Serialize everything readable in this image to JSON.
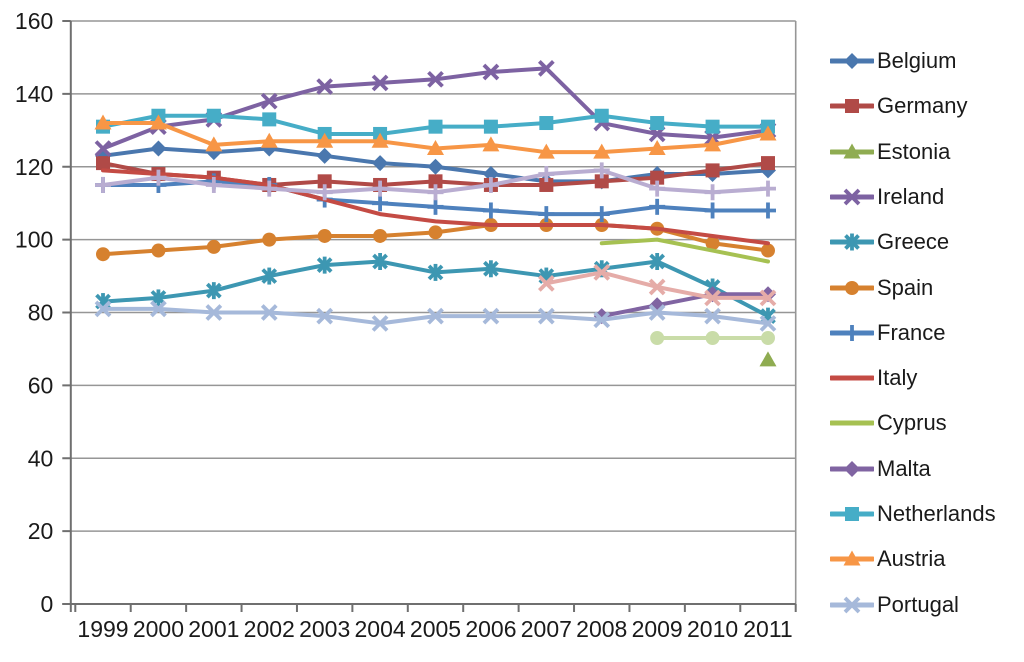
{
  "chart_data": {
    "type": "line",
    "title": "",
    "xlabel": "",
    "ylabel": "",
    "x_categories": [
      "1999",
      "2000",
      "2001",
      "2002",
      "2003",
      "2004",
      "2005",
      "2006",
      "2007",
      "2008",
      "2009",
      "2010",
      "2011"
    ],
    "y_axis": {
      "min": 0,
      "max": 160,
      "tick_step": 20,
      "tick_labels": [
        "0",
        "20",
        "40",
        "60",
        "80",
        "100",
        "120",
        "140",
        "160"
      ]
    },
    "grid": true,
    "legend_position": "right",
    "series": [
      {
        "id": "belgium",
        "name": "Belgium",
        "color": "#4A77AE",
        "marker": "diamond",
        "in_legend": true,
        "values": [
          123,
          125,
          124,
          125,
          123,
          121,
          120,
          118,
          116,
          116,
          118,
          118,
          119
        ]
      },
      {
        "id": "germany",
        "name": "Germany",
        "color": "#B04A47",
        "marker": "square",
        "in_legend": true,
        "values": [
          121,
          118,
          117,
          115,
          116,
          115,
          116,
          115,
          115,
          116,
          117,
          119,
          121
        ]
      },
      {
        "id": "estonia",
        "name": "Estonia",
        "color": "#8FAC51",
        "marker": "triangle",
        "in_legend": true,
        "values": [
          null,
          null,
          null,
          null,
          null,
          null,
          null,
          null,
          null,
          null,
          null,
          null,
          67
        ]
      },
      {
        "id": "ireland",
        "name": "Ireland",
        "color": "#7D62A2",
        "marker": "x",
        "in_legend": true,
        "values": [
          125,
          131,
          133,
          138,
          142,
          143,
          144,
          146,
          147,
          132,
          129,
          128,
          130
        ]
      },
      {
        "id": "greece",
        "name": "Greece",
        "color": "#3D97B2",
        "marker": "star",
        "in_legend": true,
        "values": [
          83,
          84,
          86,
          90,
          93,
          94,
          91,
          92,
          90,
          92,
          94,
          87,
          79
        ]
      },
      {
        "id": "spain",
        "name": "Spain",
        "color": "#D6812F",
        "marker": "circle",
        "in_legend": true,
        "values": [
          96,
          97,
          98,
          100,
          101,
          101,
          102,
          104,
          104,
          104,
          103,
          99,
          97
        ]
      },
      {
        "id": "france",
        "name": "France",
        "color": "#4E81BD",
        "marker": "plus",
        "in_legend": true,
        "values": [
          115,
          115,
          116,
          115,
          111,
          110,
          109,
          108,
          107,
          107,
          109,
          108,
          108
        ]
      },
      {
        "id": "italy",
        "name": "Italy",
        "color": "#C44B44",
        "marker": "none",
        "in_legend": true,
        "values": [
          119,
          118,
          117,
          115,
          111,
          107,
          105,
          104,
          104,
          104,
          103,
          101,
          99
        ]
      },
      {
        "id": "cyprus",
        "name": "Cyprus",
        "color": "#A6C152",
        "marker": "none",
        "in_legend": true,
        "values": [
          null,
          null,
          null,
          null,
          null,
          null,
          null,
          null,
          null,
          99,
          100,
          97,
          94
        ]
      },
      {
        "id": "malta",
        "name": "Malta",
        "color": "#8064A2",
        "marker": "diamond",
        "in_legend": true,
        "values": [
          null,
          null,
          null,
          null,
          null,
          null,
          null,
          null,
          null,
          79,
          82,
          85,
          85
        ]
      },
      {
        "id": "netherlands",
        "name": "Netherlands",
        "color": "#46ADC7",
        "marker": "square",
        "in_legend": true,
        "values": [
          131,
          134,
          134,
          133,
          129,
          129,
          131,
          131,
          132,
          134,
          132,
          131,
          131
        ]
      },
      {
        "id": "austria",
        "name": "Austria",
        "color": "#F79646",
        "marker": "triangle",
        "in_legend": true,
        "values": [
          132,
          132,
          126,
          127,
          127,
          127,
          125,
          126,
          124,
          124,
          125,
          126,
          129
        ]
      },
      {
        "id": "portugal",
        "name": "Portugal",
        "color": "#A6B9DA",
        "marker": "x",
        "in_legend": true,
        "values": [
          81,
          81,
          80,
          80,
          79,
          77,
          79,
          79,
          79,
          78,
          80,
          79,
          77
        ]
      },
      {
        "id": "unlabeled-1",
        "name": "",
        "color": "#E5ACA8",
        "marker": "x",
        "in_legend": false,
        "values": [
          null,
          null,
          null,
          null,
          null,
          null,
          null,
          null,
          88,
          91,
          87,
          84,
          84
        ]
      },
      {
        "id": "unlabeled-2",
        "name": "",
        "color": "#C9DCA8",
        "marker": "circle",
        "in_legend": false,
        "values": [
          null,
          null,
          null,
          null,
          null,
          null,
          null,
          null,
          null,
          null,
          73,
          73,
          73
        ]
      },
      {
        "id": "unlabeled-3",
        "name": "",
        "color": "#B9ADD1",
        "marker": "plus",
        "in_legend": false,
        "values": [
          115,
          117,
          115,
          114,
          113,
          114,
          113,
          115,
          118,
          119,
          114,
          113,
          114
        ]
      }
    ]
  },
  "style_colors": {
    "gridline": "#969696",
    "axis": "#6F6F6F",
    "tick_text": "#1A1A1A",
    "background": "#FFFFFF"
  }
}
